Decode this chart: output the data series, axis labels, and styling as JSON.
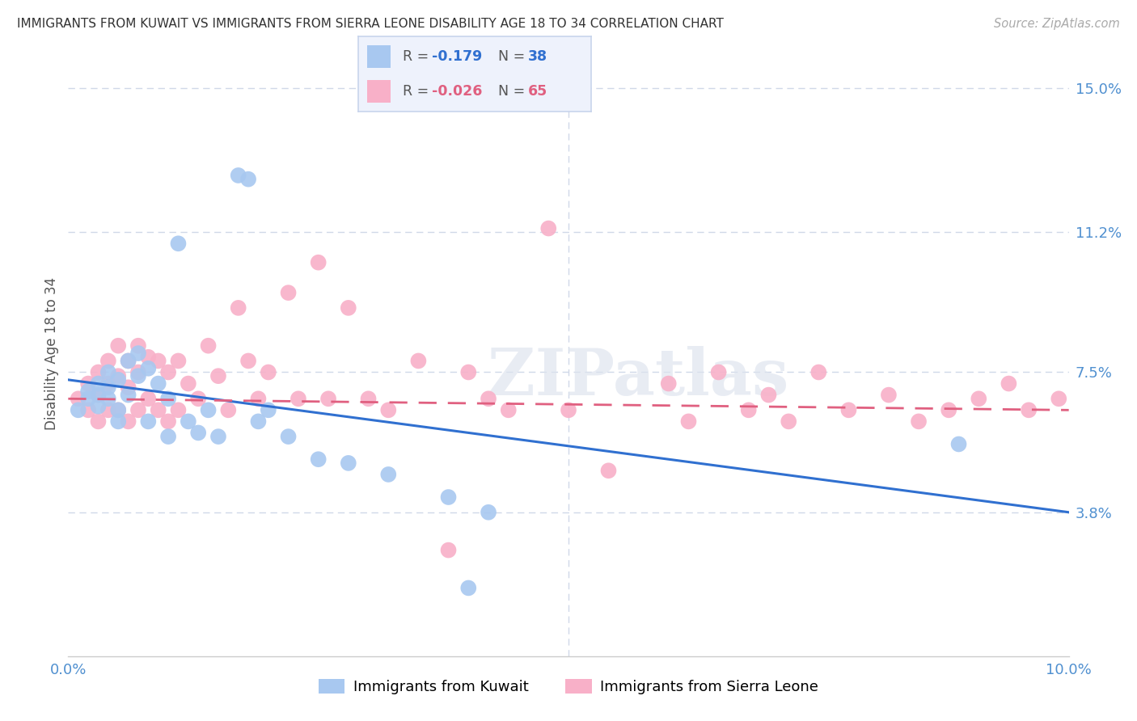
{
  "title": "IMMIGRANTS FROM KUWAIT VS IMMIGRANTS FROM SIERRA LEONE DISABILITY AGE 18 TO 34 CORRELATION CHART",
  "source": "Source: ZipAtlas.com",
  "ylabel_label": "Disability Age 18 to 34",
  "xlim": [
    0.0,
    0.1
  ],
  "ylim": [
    0.0,
    0.16
  ],
  "ytick_right_labels": [
    "15.0%",
    "11.2%",
    "7.5%",
    "3.8%"
  ],
  "ytick_right_vals": [
    0.15,
    0.112,
    0.075,
    0.038
  ],
  "kuwait_R": "-0.179",
  "kuwait_N": "38",
  "sierra_leone_R": "-0.026",
  "sierra_leone_N": "65",
  "kuwait_color": "#a8c8f0",
  "sierra_leone_color": "#f8b0c8",
  "kuwait_line_color": "#3070d0",
  "sierra_leone_line_color": "#e06080",
  "watermark": "ZIPatlas",
  "grid_color": "#d0d8e8",
  "background_color": "#ffffff",
  "legend_facecolor": "#eef2fc",
  "legend_edgecolor": "#c8d4ec",
  "kuwait_x": [
    0.001,
    0.002,
    0.002,
    0.003,
    0.003,
    0.003,
    0.004,
    0.004,
    0.004,
    0.005,
    0.005,
    0.005,
    0.006,
    0.006,
    0.007,
    0.007,
    0.008,
    0.008,
    0.009,
    0.01,
    0.01,
    0.011,
    0.012,
    0.013,
    0.014,
    0.015,
    0.017,
    0.018,
    0.019,
    0.02,
    0.022,
    0.025,
    0.028,
    0.032,
    0.038,
    0.042,
    0.04,
    0.089
  ],
  "kuwait_y": [
    0.065,
    0.07,
    0.068,
    0.072,
    0.069,
    0.066,
    0.075,
    0.071,
    0.068,
    0.073,
    0.065,
    0.062,
    0.078,
    0.069,
    0.08,
    0.074,
    0.076,
    0.062,
    0.072,
    0.068,
    0.058,
    0.109,
    0.062,
    0.059,
    0.065,
    0.058,
    0.127,
    0.126,
    0.062,
    0.065,
    0.058,
    0.052,
    0.051,
    0.048,
    0.042,
    0.038,
    0.018,
    0.056
  ],
  "sierra_x": [
    0.001,
    0.002,
    0.002,
    0.003,
    0.003,
    0.003,
    0.004,
    0.004,
    0.004,
    0.005,
    0.005,
    0.005,
    0.006,
    0.006,
    0.006,
    0.007,
    0.007,
    0.007,
    0.008,
    0.008,
    0.009,
    0.009,
    0.01,
    0.01,
    0.011,
    0.011,
    0.012,
    0.013,
    0.014,
    0.015,
    0.016,
    0.017,
    0.018,
    0.019,
    0.02,
    0.022,
    0.023,
    0.025,
    0.026,
    0.028,
    0.03,
    0.032,
    0.035,
    0.038,
    0.04,
    0.042,
    0.044,
    0.048,
    0.05,
    0.054,
    0.06,
    0.062,
    0.065,
    0.068,
    0.07,
    0.072,
    0.075,
    0.078,
    0.082,
    0.085,
    0.088,
    0.091,
    0.094,
    0.096,
    0.099
  ],
  "sierra_y": [
    0.068,
    0.072,
    0.065,
    0.075,
    0.069,
    0.062,
    0.078,
    0.072,
    0.065,
    0.082,
    0.074,
    0.065,
    0.078,
    0.071,
    0.062,
    0.082,
    0.075,
    0.065,
    0.079,
    0.068,
    0.078,
    0.065,
    0.075,
    0.062,
    0.078,
    0.065,
    0.072,
    0.068,
    0.082,
    0.074,
    0.065,
    0.092,
    0.078,
    0.068,
    0.075,
    0.096,
    0.068,
    0.104,
    0.068,
    0.092,
    0.068,
    0.065,
    0.078,
    0.028,
    0.075,
    0.068,
    0.065,
    0.113,
    0.065,
    0.049,
    0.072,
    0.062,
    0.075,
    0.065,
    0.069,
    0.062,
    0.075,
    0.065,
    0.069,
    0.062,
    0.065,
    0.068,
    0.072,
    0.065,
    0.068
  ]
}
